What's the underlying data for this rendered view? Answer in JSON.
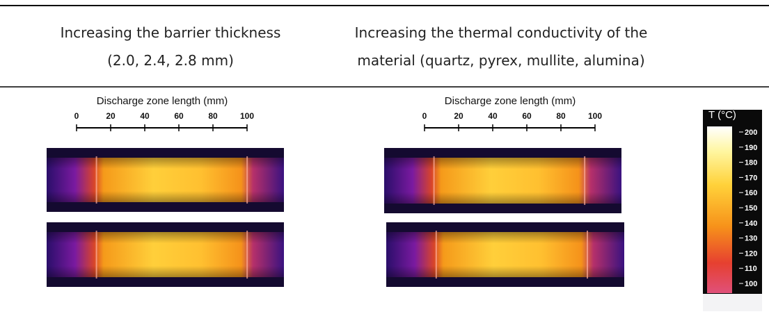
{
  "columns": [
    {
      "lines": [
        "Increasing the barrier thickness",
        "(2.0, 2.4, 2.8 mm)"
      ]
    },
    {
      "lines": [
        "Increasing the thermal conductivity of the",
        "material (quartz, pyrex, mullite, alumina)"
      ]
    }
  ],
  "panels": [
    {
      "scale_label": "Discharge zone length (mm)",
      "scale_ticks": [
        "0",
        "20",
        "40",
        "60",
        "80",
        "100"
      ]
    },
    {
      "scale_label": "Discharge zone length (mm)",
      "scale_ticks": [
        "0",
        "20",
        "40",
        "60",
        "80",
        "100"
      ]
    }
  ],
  "colorbar": {
    "title": "T (°C)",
    "ticks": [
      "200",
      "190",
      "180",
      "170",
      "160",
      "150",
      "140",
      "130",
      "120",
      "110",
      "100"
    ]
  }
}
